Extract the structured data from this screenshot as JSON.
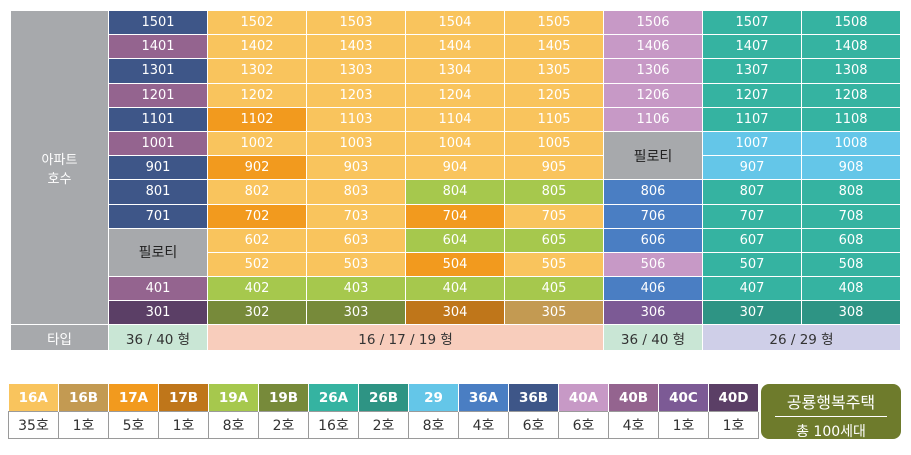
{
  "grid": {
    "side_label_line1": "아파트",
    "side_label_line2": "호수",
    "piloti_label": "필로티",
    "rows": [
      [
        "1501",
        "1502",
        "1503",
        "1504",
        "1505",
        "1506",
        "1507",
        "1508"
      ],
      [
        "1401",
        "1402",
        "1403",
        "1404",
        "1405",
        "1406",
        "1407",
        "1408"
      ],
      [
        "1301",
        "1302",
        "1303",
        "1304",
        "1305",
        "1306",
        "1307",
        "1308"
      ],
      [
        "1201",
        "1202",
        "1203",
        "1204",
        "1205",
        "1206",
        "1207",
        "1208"
      ],
      [
        "1101",
        "1102",
        "1103",
        "1104",
        "1105",
        "1106",
        "1107",
        "1108"
      ],
      [
        "1001",
        "1002",
        "1003",
        "1004",
        "1005",
        "",
        "1007",
        "1008"
      ],
      [
        "901",
        "902",
        "903",
        "904",
        "905",
        "",
        "907",
        "908"
      ],
      [
        "801",
        "802",
        "803",
        "804",
        "805",
        "806",
        "807",
        "808"
      ],
      [
        "701",
        "702",
        "703",
        "704",
        "705",
        "706",
        "707",
        "708"
      ],
      [
        "",
        "602",
        "603",
        "604",
        "605",
        "606",
        "607",
        "608"
      ],
      [
        "",
        "502",
        "503",
        "504",
        "505",
        "506",
        "507",
        "508"
      ],
      [
        "401",
        "402",
        "403",
        "404",
        "405",
        "406",
        "407",
        "408"
      ],
      [
        "301",
        "302",
        "303",
        "304",
        "305",
        "306",
        "307",
        "308"
      ]
    ],
    "type_row": {
      "label": "타입",
      "col1": "36 / 40 형",
      "col2_5": "16 / 17 / 19 형",
      "col6": "36 / 40 형",
      "col7_8": "26 / 29 형"
    }
  },
  "legend": [
    {
      "code": "16A",
      "count": "35호"
    },
    {
      "code": "16B",
      "count": "1호"
    },
    {
      "code": "17A",
      "count": "5호"
    },
    {
      "code": "17B",
      "count": "1호"
    },
    {
      "code": "19A",
      "count": "8호"
    },
    {
      "code": "19B",
      "count": "2호"
    },
    {
      "code": "26A",
      "count": "16호"
    },
    {
      "code": "26B",
      "count": "2호"
    },
    {
      "code": "29",
      "count": "8호"
    },
    {
      "code": "36A",
      "count": "4호"
    },
    {
      "code": "36B",
      "count": "6호"
    },
    {
      "code": "40A",
      "count": "6호"
    },
    {
      "code": "40B",
      "count": "4호"
    },
    {
      "code": "40C",
      "count": "1호"
    },
    {
      "code": "40D",
      "count": "1호"
    }
  ],
  "badge": {
    "title": "공룡행복주택",
    "subtitle": "총 100세대"
  },
  "colors": {
    "16A": "#f9c45d",
    "16B": "#c39a52",
    "17A": "#f29a1e",
    "17B": "#bf761a",
    "19A": "#a6c84d",
    "19B": "#778a3a",
    "26A": "#35b3a1",
    "26B": "#2e9484",
    "29": "#64c6e8",
    "36A": "#4a7ec3",
    "36B": "#3e5688",
    "40A": "#c799c6",
    "40B": "#94648f",
    "40C": "#7c5a95",
    "40D": "#5b3f66",
    "badge": "#6e7b2c"
  }
}
